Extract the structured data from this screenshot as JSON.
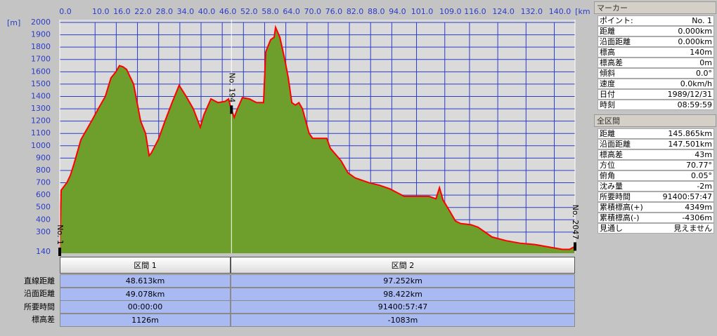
{
  "chart_data": {
    "type": "area",
    "y_unit": "[m]",
    "x_unit": "[km]",
    "x": [
      0,
      0.4,
      2.0,
      3.0,
      4.0,
      5.0,
      6.0,
      7.0,
      9.0,
      10.9,
      12.9,
      14.5,
      15.9,
      16.9,
      17.9,
      18.9,
      20.9,
      22.9,
      24.3,
      25.3,
      25.9,
      27.9,
      29.8,
      31.8,
      33.8,
      35.8,
      37.8,
      39.8,
      40.8,
      42.8,
      44.8,
      46.8,
      47.8,
      48.4,
      49.4,
      50.3,
      51.7,
      53.7,
      55.7,
      57.7,
      58.3,
      59.7,
      60.7,
      61.1,
      62.3,
      63.7,
      64.7,
      65.7,
      66.7,
      67.7,
      68.7,
      70.6,
      71.6,
      75.6,
      76.6,
      79.6,
      81.6,
      83.6,
      85.6,
      87.6,
      90.5,
      93.5,
      95.5,
      97.5,
      99.5,
      102.5,
      104.5,
      106.5,
      107.5,
      108.5,
      110.4,
      112.0,
      113.4,
      116.4,
      118.4,
      120.4,
      122.4,
      126.4,
      130.3,
      134.3,
      138.3,
      142.3,
      144.3,
      145.865
    ],
    "values": [
      140,
      640,
      700,
      760,
      850,
      950,
      1050,
      1100,
      1200,
      1300,
      1400,
      1550,
      1600,
      1650,
      1640,
      1620,
      1500,
      1200,
      1100,
      920,
      940,
      1050,
      1200,
      1350,
      1490,
      1400,
      1300,
      1150,
      1250,
      1380,
      1350,
      1360,
      1380,
      1310,
      1230,
      1300,
      1390,
      1380,
      1350,
      1350,
      1760,
      1860,
      1880,
      1960,
      1880,
      1700,
      1550,
      1350,
      1330,
      1350,
      1300,
      1100,
      1060,
      1060,
      980,
      880,
      780,
      740,
      720,
      700,
      680,
      650,
      620,
      590,
      590,
      590,
      590,
      570,
      660,
      560,
      470,
      390,
      370,
      360,
      340,
      300,
      260,
      230,
      210,
      200,
      180,
      160,
      160,
      183
    ],
    "line_color": "#ff0000",
    "fill_color": "#6e9e2c",
    "grid_color": "#2c3cc8",
    "xlim": [
      0,
      145.865
    ],
    "ylim": [
      140,
      2000
    ],
    "xticks": [
      {
        "value": 0,
        "label": "0.0"
      },
      {
        "value": 10,
        "label": "10.0"
      },
      {
        "value": 16,
        "label": "16.0"
      },
      {
        "value": 22,
        "label": "22.0"
      },
      {
        "value": 28,
        "label": "28.0"
      },
      {
        "value": 34,
        "label": "34.0"
      },
      {
        "value": 40,
        "label": "40.0"
      },
      {
        "value": 46,
        "label": "46.0"
      },
      {
        "value": 52,
        "label": "52.0"
      },
      {
        "value": 58,
        "label": "58.0"
      },
      {
        "value": 64,
        "label": "64.0"
      },
      {
        "value": 70,
        "label": "70.0"
      },
      {
        "value": 76,
        "label": "76.0"
      },
      {
        "value": 82,
        "label": "82.0"
      },
      {
        "value": 88,
        "label": "88.0"
      },
      {
        "value": 94,
        "label": "94.0"
      },
      {
        "value": 101,
        "label": "101.0"
      },
      {
        "value": 109,
        "label": "109.0"
      },
      {
        "value": 116,
        "label": "116.0"
      },
      {
        "value": 124,
        "label": "124.0"
      },
      {
        "value": 132,
        "label": "132.0"
      },
      {
        "value": 140,
        "label": "140.0"
      }
    ],
    "yticks": [
      140,
      300,
      400,
      500,
      600,
      700,
      800,
      900,
      1000,
      1100,
      1200,
      1300,
      1400,
      1500,
      1600,
      1700,
      1800,
      1900,
      2000
    ],
    "grid": true,
    "markers": [
      {
        "label": "No. 1",
        "x": 0
      },
      {
        "label": "No. 194",
        "x": 48.613
      },
      {
        "label": "No. 2047",
        "x": 145.865
      }
    ]
  },
  "segments": {
    "headers": [
      "区間 1",
      "区間 2"
    ],
    "rows": [
      {
        "label": "直線距離",
        "values": [
          "48.613km",
          "97.252km"
        ]
      },
      {
        "label": "沿面距離",
        "values": [
          "49.078km",
          "98.422km"
        ]
      },
      {
        "label": "所要時間",
        "values": [
          "00:00:00",
          "91400:57:47"
        ]
      },
      {
        "label": "標高差",
        "values": [
          "1126m",
          "-1083m"
        ]
      }
    ]
  },
  "marker_panel": {
    "title": "マーカー",
    "rows": [
      [
        "ポイント:",
        "No. 1"
      ],
      [
        "距離",
        "0.000km"
      ],
      [
        "沿面距離",
        "0.000km"
      ],
      [
        "標高",
        "140m"
      ],
      [
        "標高差",
        "0m"
      ],
      [
        "傾斜",
        "0.0°"
      ],
      [
        "速度",
        "0.0km/h"
      ],
      [
        "日付",
        "1989/12/31"
      ],
      [
        "時刻",
        "08:59:59"
      ]
    ]
  },
  "total_panel": {
    "title": "全区間",
    "rows": [
      [
        "距離",
        "145.865km"
      ],
      [
        "沿面距離",
        "147.501km"
      ],
      [
        "標高差",
        "43m"
      ],
      [
        "方位",
        "70.77°"
      ],
      [
        "俯角",
        "0.05°"
      ],
      [
        "沈み量",
        "-2m"
      ],
      [
        "所要時間",
        "91400:57:47"
      ],
      [
        "累積標高(+)",
        "4349m"
      ],
      [
        "累積標高(-)",
        "-4306m"
      ],
      [
        "見通し",
        "見えません"
      ]
    ]
  }
}
